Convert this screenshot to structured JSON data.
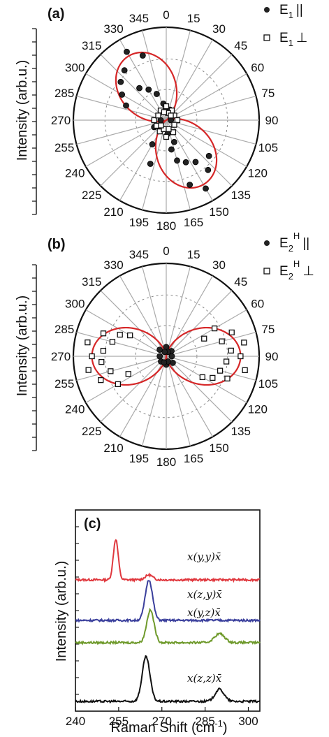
{
  "chart_data": [
    {
      "type": "polar-scatter",
      "panel": "(a)",
      "ylabel": "Intensity (arb.u.)",
      "angle_labels": [
        "0",
        "15",
        "30",
        "45",
        "60",
        "75",
        "90",
        "105",
        "120",
        "135",
        "150",
        "165",
        "180",
        "195",
        "210",
        "225",
        "240",
        "255",
        "270",
        "285",
        "300",
        "315",
        "330",
        "345"
      ],
      "grid": true,
      "legend": [
        {
          "symbol": "filled-circle",
          "label": "E",
          "sub": "1",
          "sup": "",
          "pol": "||"
        },
        {
          "symbol": "open-square",
          "label": "E",
          "sub": "1",
          "sup": "",
          "pol": "⊥"
        }
      ],
      "series": [
        {
          "name": "E1 ||",
          "marker": "filled-circle",
          "points": [
            [
              330,
              0.85
            ],
            [
              340,
              0.74
            ],
            [
              320,
              0.7
            ],
            [
              310,
              0.64
            ],
            [
              300,
              0.55
            ],
            [
              290,
              0.46
            ],
            [
              320,
              0.45
            ],
            [
              330,
              0.38
            ],
            [
              340,
              0.3
            ],
            [
              350,
              0.18
            ],
            [
              150,
              0.85
            ],
            [
              160,
              0.74
            ],
            [
              140,
              0.7
            ],
            [
              130,
              0.6
            ],
            [
              145,
              0.55
            ],
            [
              155,
              0.5
            ],
            [
              165,
              0.45
            ],
            [
              170,
              0.32
            ],
            [
              160,
              0.25
            ],
            [
              175,
              0.15
            ],
            [
              200,
              0.5
            ],
            [
              210,
              0.3
            ],
            [
              240,
              0.15
            ],
            [
              0,
              0.1
            ],
            [
              20,
              0.12
            ],
            [
              90,
              0.05
            ],
            [
              270,
              0.06
            ]
          ]
        },
        {
          "name": "E1 ⊥",
          "marker": "open-square",
          "points": [
            [
              0,
              0.15
            ],
            [
              30,
              0.12
            ],
            [
              60,
              0.1
            ],
            [
              90,
              0.12
            ],
            [
              120,
              0.1
            ],
            [
              150,
              0.15
            ],
            [
              180,
              0.18
            ],
            [
              210,
              0.14
            ],
            [
              240,
              0.12
            ],
            [
              270,
              0.13
            ],
            [
              300,
              0.1
            ],
            [
              330,
              0.12
            ],
            [
              15,
              0.08
            ],
            [
              45,
              0.07
            ],
            [
              195,
              0.1
            ],
            [
              225,
              0.08
            ],
            [
              165,
              0.1
            ],
            [
              345,
              0.09
            ]
          ]
        }
      ],
      "fit": {
        "type": "cos2",
        "peak_angle_deg": 330,
        "color": "#d62728"
      }
    },
    {
      "type": "polar-scatter",
      "panel": "(b)",
      "ylabel": "Intensity (arb.u.)",
      "angle_labels": [
        "0",
        "15",
        "30",
        "45",
        "60",
        "75",
        "90",
        "105",
        "120",
        "135",
        "150",
        "165",
        "180",
        "195",
        "210",
        "225",
        "240",
        "255",
        "270",
        "285",
        "300",
        "315",
        "330",
        "345"
      ],
      "grid": true,
      "legend": [
        {
          "symbol": "filled-circle",
          "label": "E",
          "sub": "2",
          "sup": "H",
          "pol": "||"
        },
        {
          "symbol": "open-square",
          "label": "E",
          "sub": "2",
          "sup": "H",
          "pol": "⊥"
        }
      ],
      "series": [
        {
          "name": "E2H ||",
          "marker": "filled-circle",
          "points": [
            [
              0,
              0.1
            ],
            [
              45,
              0.08
            ],
            [
              90,
              0.06
            ],
            [
              135,
              0.1
            ],
            [
              180,
              0.09
            ],
            [
              225,
              0.08
            ],
            [
              270,
              0.07
            ],
            [
              315,
              0.1
            ],
            [
              20,
              0.05
            ],
            [
              160,
              0.06
            ],
            [
              200,
              0.07
            ],
            [
              340,
              0.05
            ]
          ]
        },
        {
          "name": "E2H ⊥",
          "marker": "open-square",
          "points": [
            [
              60,
              0.6
            ],
            [
              70,
              0.75
            ],
            [
              75,
              0.62
            ],
            [
              80,
              0.85
            ],
            [
              85,
              0.7
            ],
            [
              90,
              0.8
            ],
            [
              95,
              0.65
            ],
            [
              100,
              0.86
            ],
            [
              105,
              0.6
            ],
            [
              110,
              0.7
            ],
            [
              115,
              0.55
            ],
            [
              65,
              0.45
            ],
            [
              120,
              0.45
            ],
            [
              240,
              0.6
            ],
            [
              250,
              0.75
            ],
            [
              255,
              0.62
            ],
            [
              260,
              0.85
            ],
            [
              265,
              0.7
            ],
            [
              270,
              0.8
            ],
            [
              275,
              0.68
            ],
            [
              280,
              0.86
            ],
            [
              285,
              0.6
            ],
            [
              290,
              0.72
            ],
            [
              295,
              0.55
            ],
            [
              245,
              0.45
            ],
            [
              300,
              0.45
            ]
          ]
        }
      ],
      "fit": {
        "type": "cos2",
        "peak_angle_deg": 90,
        "color": "#d62728"
      }
    },
    {
      "type": "line",
      "panel": "(c)",
      "xlabel": "Raman Shift (cm",
      "xlabel_sup": "-1",
      "xlabel_end": ")",
      "ylabel": "Intensity (arb.u.)",
      "xlim": [
        240,
        304
      ],
      "xticks": [
        240,
        255,
        270,
        285,
        300
      ],
      "series": [
        {
          "name": "x(y,y)x̄",
          "color": "#e0383e",
          "offset": 3.0,
          "peaks": [
            [
              254,
              1.0,
              1.2
            ],
            [
              265.5,
              0.12,
              1.8
            ]
          ]
        },
        {
          "name": "x(z,y)x̄",
          "color": "#3a3f9c",
          "offset": 2.0,
          "peaks": [
            [
              265.5,
              1.0,
              1.8
            ]
          ]
        },
        {
          "name": "x(y,z)x̄",
          "color": "#6f9a2c",
          "offset": 1.45,
          "peaks": [
            [
              266,
              0.8,
              1.8
            ],
            [
              290,
              0.22,
              2.5
            ]
          ]
        },
        {
          "name": "x(z,z)x̄",
          "color": "#111111",
          "offset": 0.0,
          "peaks": [
            [
              264.5,
              1.1,
              1.9
            ],
            [
              290,
              0.3,
              2.2
            ]
          ]
        }
      ]
    }
  ]
}
